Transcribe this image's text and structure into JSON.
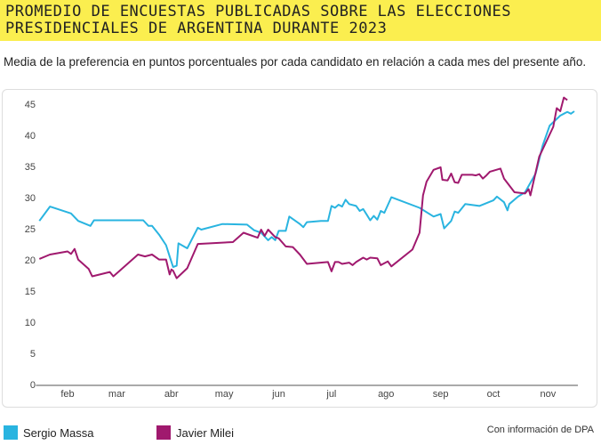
{
  "chart_data": {
    "type": "line",
    "title": "PROMEDIO DE ENCUESTAS PUBLICADAS SOBRE LAS ELECCIONES PRESIDENCIALES DE ARGENTINA DURANTE 2023",
    "subtitle": "Media de la preferencia en puntos porcentuales por cada candidato en relación a cada mes del presente año.",
    "source": "Con información de DPA",
    "xlim": [
      12,
      322
    ],
    "xticks": [
      {
        "value": 32,
        "label": "feb"
      },
      {
        "value": 60,
        "label": "mar"
      },
      {
        "value": 91,
        "label": "abr"
      },
      {
        "value": 121,
        "label": "may"
      },
      {
        "value": 152,
        "label": "jun"
      },
      {
        "value": 182,
        "label": "jul"
      },
      {
        "value": 213,
        "label": "ago"
      },
      {
        "value": 244,
        "label": "sep"
      },
      {
        "value": 274,
        "label": "oct"
      },
      {
        "value": 305,
        "label": "nov"
      }
    ],
    "ylim": [
      0,
      47
    ],
    "yticks": [
      0,
      5,
      10,
      15,
      20,
      25,
      30,
      35,
      40,
      45
    ],
    "series": [
      {
        "name": "Sergio Massa",
        "color": "#29b4e0",
        "x": [
          16,
          22,
          34,
          38,
          45,
          47,
          60,
          75,
          78,
          80,
          84,
          88,
          90,
          92,
          94,
          95,
          100,
          106,
          108,
          120,
          134,
          138,
          142,
          146,
          148,
          150,
          152,
          156,
          158,
          164,
          166,
          168,
          176,
          180,
          182,
          184,
          186,
          188,
          190,
          192,
          196,
          198,
          200,
          202,
          204,
          206,
          208,
          210,
          212,
          216,
          232,
          240,
          244,
          246,
          250,
          252,
          254,
          258,
          266,
          274,
          276,
          280,
          282,
          283,
          288,
          292,
          298,
          302,
          306,
          312,
          316,
          318,
          320
        ],
        "values": [
          26.4,
          28.7,
          27.6,
          26.4,
          25.6,
          26.5,
          26.5,
          26.5,
          25.6,
          25.6,
          24.2,
          22.5,
          20.7,
          19,
          19.2,
          22.8,
          22,
          25.3,
          25,
          25.9,
          25.8,
          24.9,
          24.5,
          23.3,
          23.8,
          23.3,
          24.8,
          24.8,
          27.1,
          25.9,
          25.4,
          26.2,
          26.4,
          26.4,
          28.8,
          28.5,
          29,
          28.7,
          29.8,
          29.1,
          28.8,
          28,
          28.3,
          27.4,
          26.5,
          27.2,
          26.6,
          28,
          27.7,
          30.2,
          28.5,
          27.1,
          27.5,
          25.2,
          26.4,
          27.9,
          27.7,
          29.1,
          28.8,
          29.7,
          30.3,
          29.4,
          28.1,
          29.1,
          30.3,
          31,
          34,
          38.5,
          41.7,
          43.3,
          43.9,
          43.6,
          44
        ]
      },
      {
        "name": "Javier Milei",
        "color": "#a0196e",
        "x": [
          16,
          22,
          32,
          34,
          36,
          38,
          44,
          46,
          56,
          58,
          72,
          76,
          80,
          84,
          88,
          90,
          91,
          92,
          94,
          100,
          106,
          126,
          132,
          140,
          142,
          144,
          146,
          150,
          152,
          156,
          160,
          164,
          168,
          180,
          182,
          184,
          186,
          188,
          192,
          194,
          196,
          200,
          202,
          204,
          208,
          210,
          214,
          216,
          228,
          232,
          234,
          236,
          240,
          244,
          245,
          248,
          250,
          252,
          254,
          256,
          262,
          264,
          266,
          268,
          270,
          272,
          278,
          280,
          286,
          292,
          294,
          295,
          300,
          308,
          310,
          312,
          314,
          316
        ],
        "values": [
          20.3,
          21,
          21.5,
          21.1,
          21.9,
          20.2,
          18.7,
          17.5,
          18.2,
          17.5,
          21,
          20.7,
          21,
          20.2,
          20.2,
          17.8,
          18.6,
          18.4,
          17.2,
          18.8,
          22.7,
          23,
          24.5,
          23.7,
          25,
          24,
          25,
          23.8,
          23.6,
          22.3,
          22.2,
          21,
          19.5,
          19.8,
          18.3,
          19.8,
          19.8,
          19.5,
          19.7,
          19.3,
          19.8,
          20.5,
          20.2,
          20.5,
          20.4,
          19.3,
          19.9,
          19.1,
          21.8,
          24.5,
          30.5,
          32.7,
          34.6,
          35,
          33,
          32.9,
          34,
          32.6,
          32.5,
          33.8,
          33.8,
          33.7,
          33.9,
          33.2,
          33.7,
          34.3,
          34.8,
          33.2,
          31,
          30.8,
          31.5,
          30.5,
          36.7,
          41.5,
          44.5,
          44,
          46.2,
          45.8
        ]
      }
    ]
  }
}
